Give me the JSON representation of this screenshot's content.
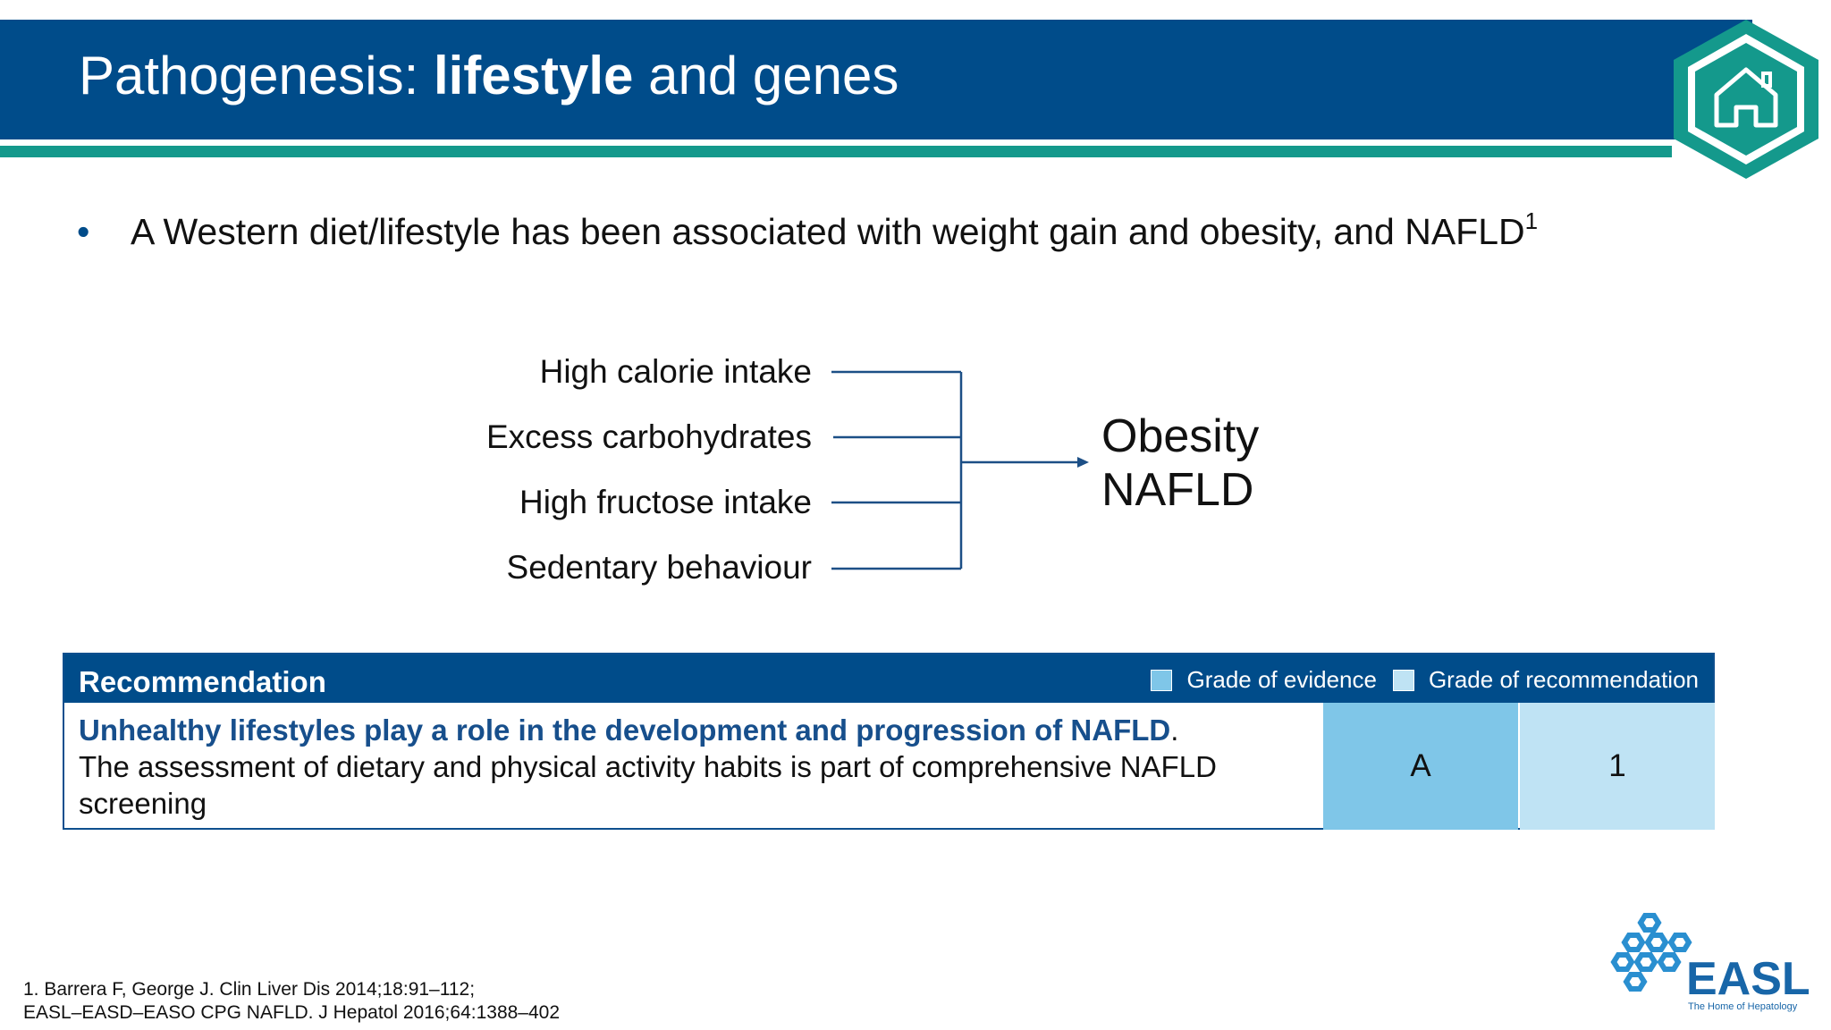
{
  "slide": {
    "title_regular": "Pathogenesis: ",
    "title_bold": "lifestyle",
    "title_suffix": " and genes",
    "bullet": {
      "text": "A Western diet/lifestyle has been associated with weight gain and obesity, and NAFLD",
      "superscript": "1"
    }
  },
  "diagram": {
    "factors": [
      "High calorie intake",
      "Excess carbohydrates",
      "High fructose intake",
      "Sedentary behaviour"
    ],
    "outcomes": [
      "Obesity",
      "NAFLD"
    ]
  },
  "recommendation": {
    "title": "Recommendation",
    "legend": {
      "evidence_label": "Grade of evidence",
      "recommendation_label": "Grade of recommendation"
    },
    "lead": "Unhealthy lifestyles play a role in the development and progression of NAFLD",
    "lead_punct": ".",
    "body": "The assessment of dietary and physical activity habits is part of comprehensive NAFLD screening",
    "grade_evidence": "A",
    "grade_recommendation": "1"
  },
  "references": [
    "1. Barrera F, George J. Clin Liver Dis 2014;18:91–112;",
    "EASL–EASD–EASO CPG NAFLD. J Hepatol 2016;64:1388–402"
  ],
  "logo": {
    "name": "EASL",
    "tagline": "The Home of Hepatology"
  },
  "colors": {
    "brand_blue": "#004c8a",
    "teal": "#14998c",
    "grade_evidence_fill": "#7fc6e8",
    "grade_recommendation_fill": "#bfe3f4"
  }
}
